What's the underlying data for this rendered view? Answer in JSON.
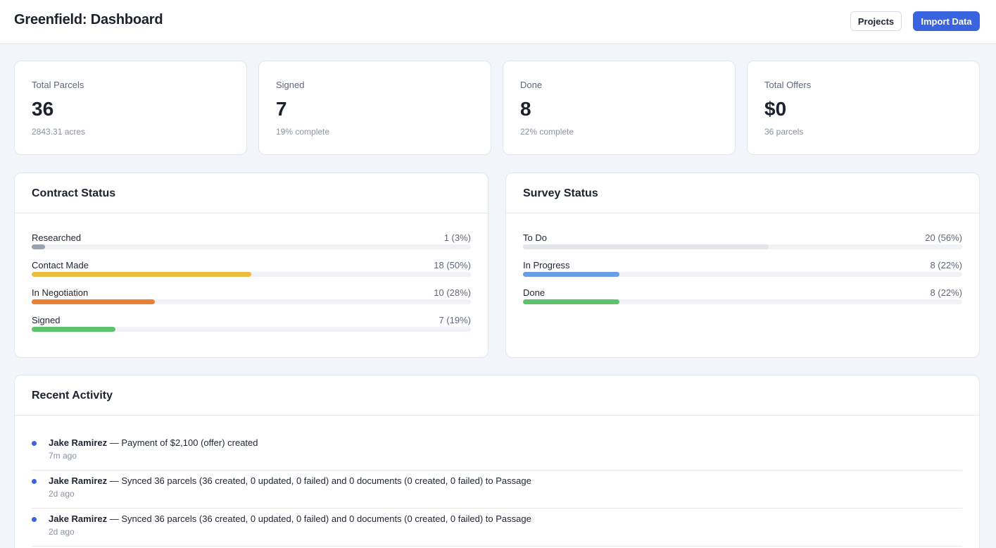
{
  "header": {
    "title": "Greenfield: Dashboard",
    "projects_label": "Projects",
    "import_label": "Import Data"
  },
  "stats": [
    {
      "label": "Total Parcels",
      "value": "36",
      "sub": "2843.31 acres"
    },
    {
      "label": "Signed",
      "value": "7",
      "sub": "19% complete"
    },
    {
      "label": "Done",
      "value": "8",
      "sub": "22% complete"
    },
    {
      "label": "Total Offers",
      "value": "$0",
      "sub": "36 parcels"
    }
  ],
  "contract_status": {
    "title": "Contract Status",
    "items": [
      {
        "label": "Researched",
        "value": "1 (3%)",
        "fraction": 0.03,
        "color": "#9aa2af"
      },
      {
        "label": "Contact Made",
        "value": "18 (50%)",
        "fraction": 0.5,
        "color": "#ecbd41"
      },
      {
        "label": "In Negotiation",
        "value": "10 (28%)",
        "fraction": 0.28,
        "color": "#e87f33"
      },
      {
        "label": "Signed",
        "value": "7 (19%)",
        "fraction": 0.19,
        "color": "#5cc26c"
      }
    ]
  },
  "survey_status": {
    "title": "Survey Status",
    "items": [
      {
        "label": "To Do",
        "value": "20 (56%)",
        "fraction": 0.56,
        "color": "#e2e5ea"
      },
      {
        "label": "In Progress",
        "value": "8 (22%)",
        "fraction": 0.22,
        "color": "#6a9ce8"
      },
      {
        "label": "Done",
        "value": "8 (22%)",
        "fraction": 0.22,
        "color": "#5cc26c"
      }
    ]
  },
  "recent_activity": {
    "title": "Recent Activity",
    "items": [
      {
        "user": "Jake Ramirez",
        "text": " — Payment of $2,100 (offer) created",
        "time": "7m ago"
      },
      {
        "user": "Jake Ramirez",
        "text": " — Synced 36 parcels (36 created, 0 updated, 0 failed) and 0 documents (0 created, 0 failed) to Passage",
        "time": "2d ago"
      },
      {
        "user": "Jake Ramirez",
        "text": " — Synced 36 parcels (36 created, 0 updated, 0 failed) and 0 documents (0 created, 0 failed) to Passage",
        "time": "2d ago"
      }
    ]
  }
}
